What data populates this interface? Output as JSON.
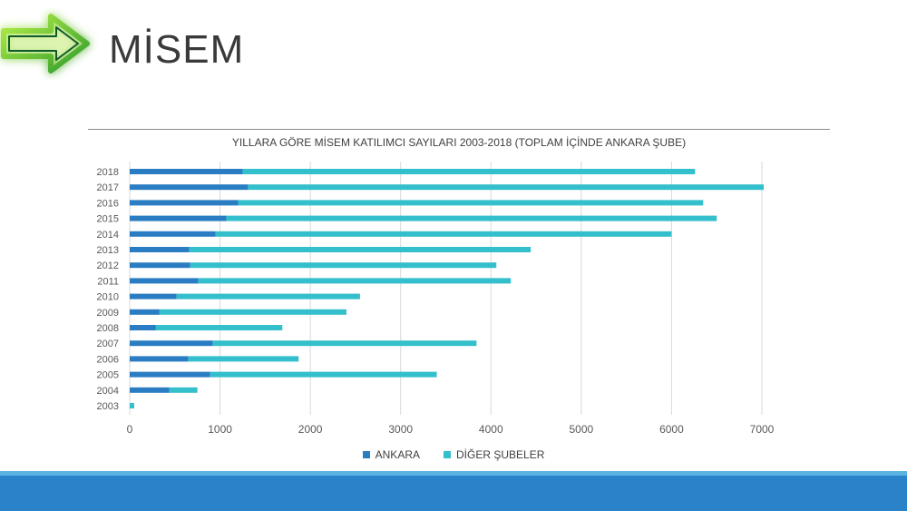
{
  "slide": {
    "title": "MİSEM",
    "logo_icon": "green-right-arrow-icon"
  },
  "colors": {
    "ankara": "#2a7dc2",
    "other": "#33bfcb",
    "footer": "#2a82c8",
    "footer_accent": "#5ab3e0"
  },
  "chart_data": {
    "type": "bar",
    "orientation": "horizontal",
    "stacked": true,
    "title": "YILLARA GÖRE MİSEM KATILIMCI SAYILARI 2003-2018 (TOPLAM İÇİNDE ANKARA ŞUBE)",
    "categories": [
      "2018",
      "2017",
      "2016",
      "2015",
      "2014",
      "2013",
      "2012",
      "2011",
      "2010",
      "2009",
      "2008",
      "2007",
      "2006",
      "2005",
      "2004",
      "2003"
    ],
    "series": [
      {
        "name": "ANKARA",
        "color": "#2a7dc2",
        "values": [
          1250,
          1310,
          1200,
          1070,
          950,
          660,
          670,
          760,
          520,
          330,
          290,
          920,
          650,
          890,
          440,
          0
        ]
      },
      {
        "name": "DİĞER ŞUBELER",
        "color": "#33bfcb",
        "values": [
          5010,
          5710,
          5150,
          5430,
          5050,
          3780,
          3390,
          3460,
          2030,
          2070,
          1400,
          2920,
          1220,
          2510,
          310,
          50
        ]
      }
    ],
    "xlim": [
      0,
      7000
    ],
    "xticks": [
      "0",
      "1000",
      "2000",
      "3000",
      "4000",
      "5000",
      "6000",
      "7000"
    ],
    "grid": "vertical",
    "legend_position": "bottom"
  }
}
